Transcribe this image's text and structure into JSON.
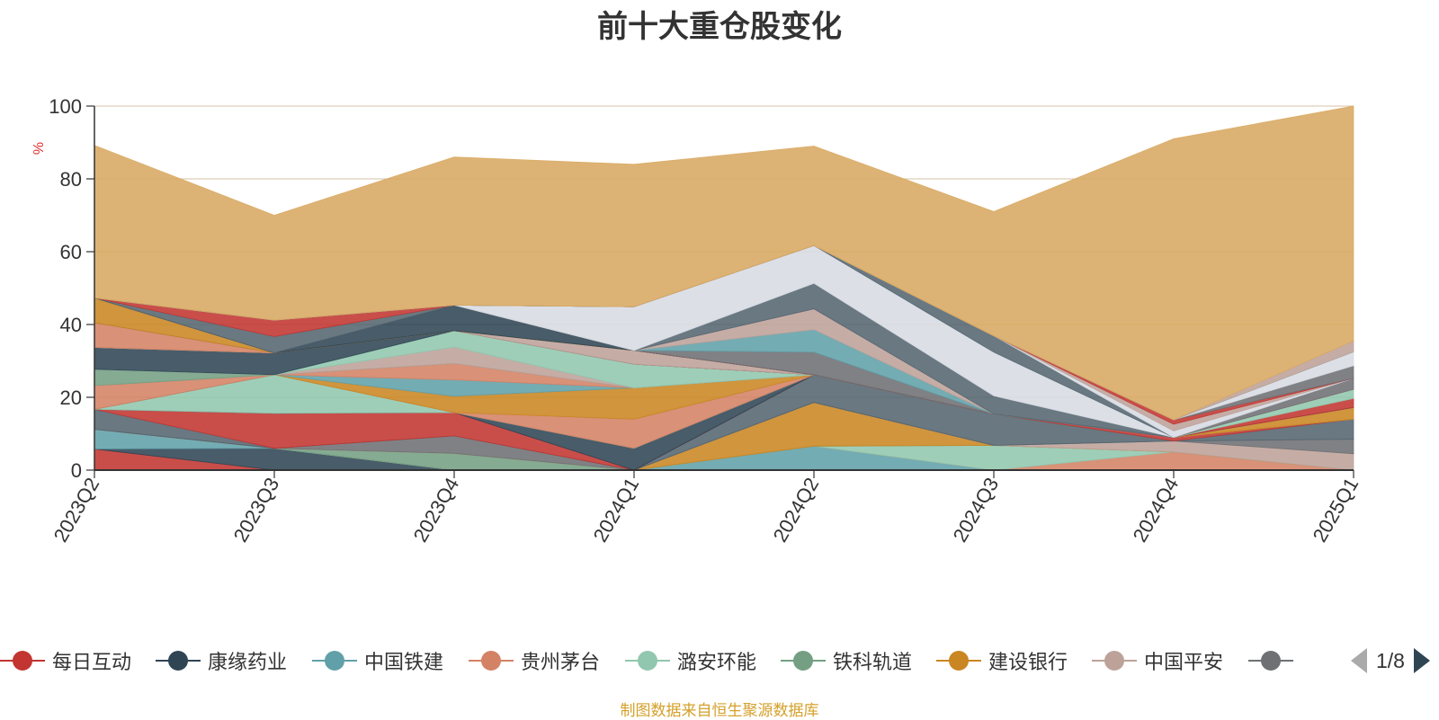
{
  "chart_data": {
    "type": "area",
    "title": "前十大重仓股变化",
    "ylabel": "%",
    "ylim": [
      0,
      100
    ],
    "yticks": [
      0,
      20,
      40,
      60,
      80,
      100
    ],
    "categories": [
      "2023Q2",
      "2023Q3",
      "2023Q4",
      "2024Q1",
      "2024Q2",
      "2024Q3",
      "2024Q4",
      "2025Q1"
    ],
    "stacked_to": 100,
    "series": [
      {
        "name": "每日互动",
        "color": "#c23531",
        "values": [
          5.8,
          0,
          0,
          0,
          0,
          0,
          0,
          0
        ]
      },
      {
        "name": "康缘药业",
        "color": "#2f4554",
        "values": [
          0,
          6.0,
          0,
          0,
          0,
          0,
          0,
          0
        ]
      },
      {
        "name": "中国铁建",
        "color": "#61a0a8",
        "values": [
          5.4,
          0,
          0,
          0,
          6.6,
          0,
          0,
          0
        ]
      },
      {
        "name": "贵州茅台",
        "color": "#d48265",
        "values": [
          0,
          0,
          0,
          0,
          0,
          0,
          5.0,
          0
        ]
      },
      {
        "name": "潞安环能",
        "color": "#91c7ae",
        "values": [
          0,
          0,
          0,
          0,
          0,
          6.8,
          0,
          0
        ]
      },
      {
        "name": "铁科轨道",
        "color": "#749f83",
        "values": [
          0,
          0,
          4.6,
          0,
          0,
          0,
          0,
          0
        ]
      },
      {
        "name": "建设银行",
        "color": "#ca8622",
        "values": [
          0,
          0,
          0,
          0,
          12.0,
          0,
          0,
          0
        ]
      },
      {
        "name": "中国平安",
        "color": "#bda29a",
        "values": [
          0,
          0,
          0,
          0,
          0,
          0,
          3.0,
          4.5
        ]
      },
      {
        "name": "",
        "color": "#6e7074",
        "values": [
          0,
          0,
          4.8,
          0,
          0,
          0,
          0,
          4.0
        ]
      },
      {
        "name": "",
        "color": "#546570",
        "values": [
          5.5,
          0,
          0,
          0,
          7.6,
          8.6,
          0,
          5.5
        ]
      },
      {
        "name": "",
        "color": "#c23531",
        "values": [
          0,
          9.6,
          6.4,
          0,
          0,
          0,
          1.0,
          0
        ]
      },
      {
        "name": "",
        "color": "#2f4554",
        "values": [
          0,
          0,
          0,
          6.0,
          0,
          0,
          0,
          0
        ]
      },
      {
        "name": "",
        "color": "#91c7ae",
        "values": [
          0,
          10.6,
          0,
          0,
          0,
          0,
          0,
          0
        ]
      },
      {
        "name": "",
        "color": "#d48265",
        "values": [
          0,
          0,
          0,
          8.0,
          0,
          0,
          0,
          0
        ]
      },
      {
        "name": "",
        "color": "#ca8622",
        "values": [
          0,
          0,
          4.5,
          8.6,
          0,
          0,
          0,
          3.2
        ]
      },
      {
        "name": "",
        "color": "#61a0a8",
        "values": [
          0,
          0,
          4.5,
          0,
          0,
          0,
          0,
          0
        ]
      },
      {
        "name": "",
        "color": "#d48265",
        "values": [
          6.5,
          0,
          4.5,
          0,
          0,
          0,
          0,
          0
        ]
      },
      {
        "name": "",
        "color": "#749f83",
        "values": [
          4.5,
          0,
          0,
          0,
          0,
          0,
          0,
          0
        ]
      },
      {
        "name": "",
        "color": "#bda29a",
        "values": [
          0,
          0,
          4.5,
          0,
          0,
          0,
          0,
          0
        ]
      },
      {
        "name": "",
        "color": "#91c7ae",
        "values": [
          0,
          0,
          4.5,
          6.5,
          0,
          0,
          0,
          0
        ]
      },
      {
        "name": "",
        "color": "#2f4554",
        "values": [
          6.0,
          6.0,
          0,
          0,
          0,
          0,
          0,
          0
        ]
      },
      {
        "name": "",
        "color": "#c23531",
        "values": [
          0,
          0,
          0,
          0,
          0,
          0,
          0,
          2.5
        ]
      },
      {
        "name": "",
        "color": "#bda29a",
        "values": [
          0,
          0,
          0,
          3.8,
          0,
          0,
          0,
          0
        ]
      },
      {
        "name": "",
        "color": "#91c7ae",
        "values": [
          0,
          0,
          0,
          0,
          0,
          0,
          0,
          2.5
        ]
      },
      {
        "name": "",
        "color": "#d48265",
        "values": [
          6.8,
          0,
          0,
          0,
          0,
          0,
          0,
          0
        ]
      },
      {
        "name": "",
        "color": "#6e7074",
        "values": [
          0,
          0,
          0,
          0,
          0,
          0,
          0,
          3.0
        ]
      },
      {
        "name": "",
        "color": "#ca8622",
        "values": [
          6.8,
          0,
          0,
          0,
          0,
          0,
          0,
          0
        ]
      },
      {
        "name": "",
        "color": "#2f4554",
        "values": [
          0,
          0,
          7.0,
          0,
          0,
          0,
          0,
          0
        ]
      },
      {
        "name": "",
        "color": "#546570",
        "values": [
          0,
          4.5,
          0,
          0,
          0,
          0,
          0,
          0
        ]
      },
      {
        "name": "",
        "color": "#c23531",
        "values": [
          0,
          4.5,
          0,
          0,
          0,
          0,
          0,
          0
        ]
      },
      {
        "name": "",
        "color": "#6e7074",
        "values": [
          0,
          0,
          0,
          0,
          6.2,
          0,
          0,
          0
        ]
      },
      {
        "name": "",
        "color": "#61a0a8",
        "values": [
          0,
          0,
          0,
          0,
          6.2,
          0,
          0,
          0
        ]
      },
      {
        "name": "",
        "color": "#bda29a",
        "values": [
          0,
          0,
          0,
          0,
          5.7,
          0,
          0,
          0
        ]
      },
      {
        "name": "",
        "color": "#546570",
        "values": [
          0,
          0,
          0,
          0,
          7.0,
          5.0,
          0,
          0
        ]
      },
      {
        "name": "",
        "color": "#d7dbe3",
        "values": [
          0,
          0,
          0,
          12.0,
          10.4,
          12.0,
          0,
          0
        ]
      },
      {
        "name": "",
        "color": "#546570",
        "values": [
          0,
          0,
          0,
          0,
          0,
          4.5,
          0,
          0
        ]
      },
      {
        "name": "",
        "color": "#d7dbe3",
        "values": [
          0,
          0,
          0,
          0,
          0,
          0,
          1.8,
          0
        ]
      },
      {
        "name": "",
        "color": "#bda29a",
        "values": [
          0,
          0,
          0,
          0,
          0,
          0,
          1.8,
          0
        ]
      },
      {
        "name": "",
        "color": "#c23531",
        "values": [
          0,
          0,
          0,
          0,
          0,
          0,
          1.2,
          0
        ]
      },
      {
        "name": "",
        "color": "#6e7074",
        "values": [
          0,
          0,
          0,
          0,
          0,
          0,
          0,
          3.5
        ]
      },
      {
        "name": "",
        "color": "#d7dbe3",
        "values": [
          0,
          0,
          0,
          0,
          0,
          0,
          0,
          3.8
        ]
      },
      {
        "name": "",
        "color": "#749f83",
        "values": [
          0,
          0,
          0,
          0,
          0,
          0,
          0,
          0
        ]
      },
      {
        "name": "",
        "color": "#bda29a",
        "values": [
          0,
          0,
          0,
          0,
          0,
          0,
          0,
          3.0
        ]
      },
      {
        "name": "",
        "color": "#d8a862",
        "values": [
          41.9,
          28.8,
          40.7,
          39.1,
          27.3,
          34.1,
          77.2,
          64.5
        ]
      }
    ]
  },
  "legend": {
    "items": [
      {
        "label": "每日互动",
        "color": "#c23531"
      },
      {
        "label": "康缘药业",
        "color": "#2f4554"
      },
      {
        "label": "中国铁建",
        "color": "#61a0a8"
      },
      {
        "label": "贵州茅台",
        "color": "#d48265"
      },
      {
        "label": "潞安环能",
        "color": "#91c7ae"
      },
      {
        "label": "铁科轨道",
        "color": "#749f83"
      },
      {
        "label": "建设银行",
        "color": "#ca8622"
      },
      {
        "label": "中国平安",
        "color": "#bda29a"
      },
      {
        "label": "",
        "color": "#6e7074"
      }
    ],
    "page_indicator": "1/8"
  },
  "footer": {
    "source_text": "制图数据来自恒生聚源数据库"
  }
}
